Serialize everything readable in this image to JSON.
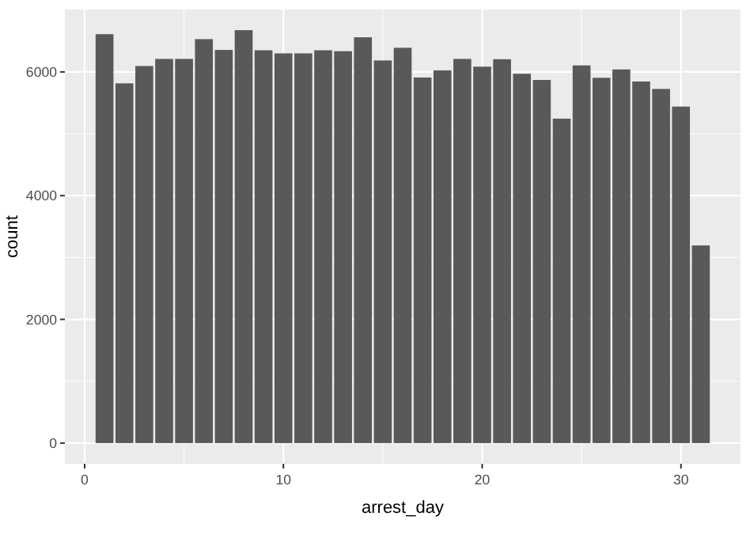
{
  "chart_data": {
    "type": "bar",
    "xlabel": "arrest_day",
    "ylabel": "count",
    "x": [
      1,
      2,
      3,
      4,
      5,
      6,
      7,
      8,
      9,
      10,
      11,
      12,
      13,
      14,
      15,
      16,
      17,
      18,
      19,
      20,
      21,
      22,
      23,
      24,
      25,
      26,
      27,
      28,
      29,
      30,
      31
    ],
    "values": [
      6610,
      5815,
      6095,
      6210,
      6210,
      6530,
      6355,
      6675,
      6350,
      6300,
      6300,
      6350,
      6335,
      6560,
      6185,
      6390,
      5910,
      6025,
      6210,
      6085,
      6205,
      5970,
      5870,
      5245,
      6105,
      5905,
      6040,
      5845,
      5725,
      5440,
      3195
    ],
    "color": "#595959",
    "xlim": [
      -0.995,
      32.995
    ],
    "xticks": [
      0,
      10,
      20,
      30
    ],
    "ylim": [
      -334,
      7009
    ],
    "yticks": [
      0,
      2000,
      4000,
      6000
    ],
    "grid": true
  }
}
